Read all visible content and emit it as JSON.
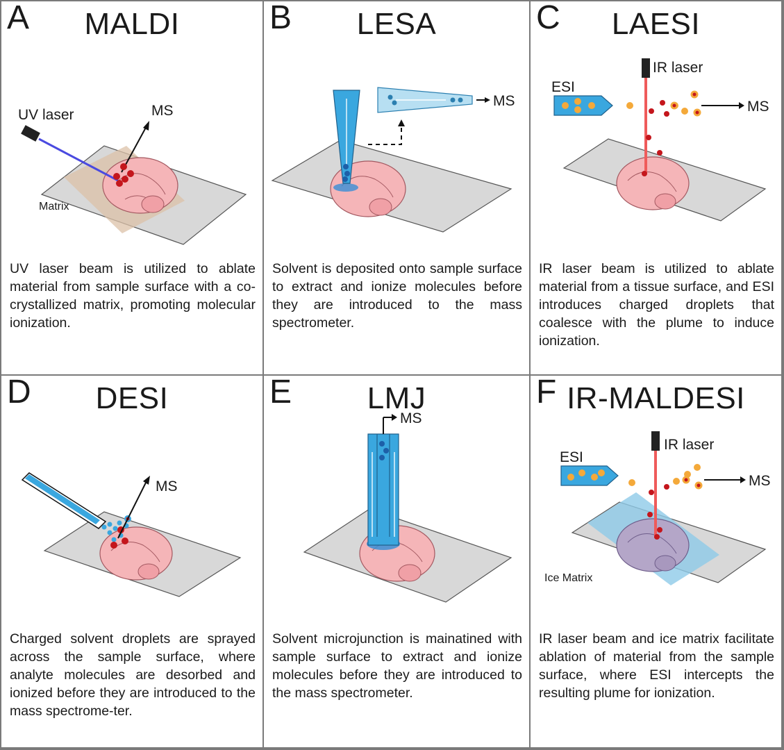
{
  "panels": {
    "a": {
      "letter": "A",
      "title": "MALDI",
      "labels": {
        "laser": "UV laser",
        "ms": "MS",
        "matrix": "Matrix"
      },
      "description": "UV laser beam is utilized to ablate material from sample surface with a co-crystallized matrix, promoting molecular ionization."
    },
    "b": {
      "letter": "B",
      "title": "LESA",
      "labels": {
        "ms": "MS"
      },
      "description": "Solvent is deposited onto sample surface to extract and ionize molecules before they are introduced to the mass spectrometer."
    },
    "c": {
      "letter": "C",
      "title": "LAESI",
      "labels": {
        "laser": "IR laser",
        "esi": "ESI",
        "ms": "MS"
      },
      "description": "IR laser beam is utilized to ablate material from a tissue surface, and ESI introduces charged droplets that coalesce with the plume to induce ionization."
    },
    "d": {
      "letter": "D",
      "title": "DESI",
      "labels": {
        "ms": "MS"
      },
      "description": "Charged solvent droplets are sprayed across the sample surface, where analyte molecules are desorbed and ionized before they are introduced to the mass spectrome-ter."
    },
    "e": {
      "letter": "E",
      "title": "LMJ",
      "labels": {
        "ms": "MS"
      },
      "description": "Solvent microjunction is mainatined with sample surface to extract and ionize molecules before they are introduced to the mass spectrometer."
    },
    "f": {
      "letter": "F",
      "title": "IR-MALDESI",
      "labels": {
        "laser": "IR laser",
        "esi": "ESI",
        "ms": "MS",
        "matrix": "Ice Matrix"
      },
      "description": "IR laser beam and ice matrix facilitate ablation of material from the sample surface, where ESI intercepts the resulting plume for ionization."
    }
  },
  "colors": {
    "slide": "#d8d8d8",
    "brain": "#f5b5b8",
    "solvent": "#3aa7df",
    "analyte": "#c4161c",
    "esi_droplet": "#f4a93a",
    "ir_beam": "#ef5b5b",
    "uv_beam": "#4a4ae0",
    "ice": "#8fcbe8"
  }
}
